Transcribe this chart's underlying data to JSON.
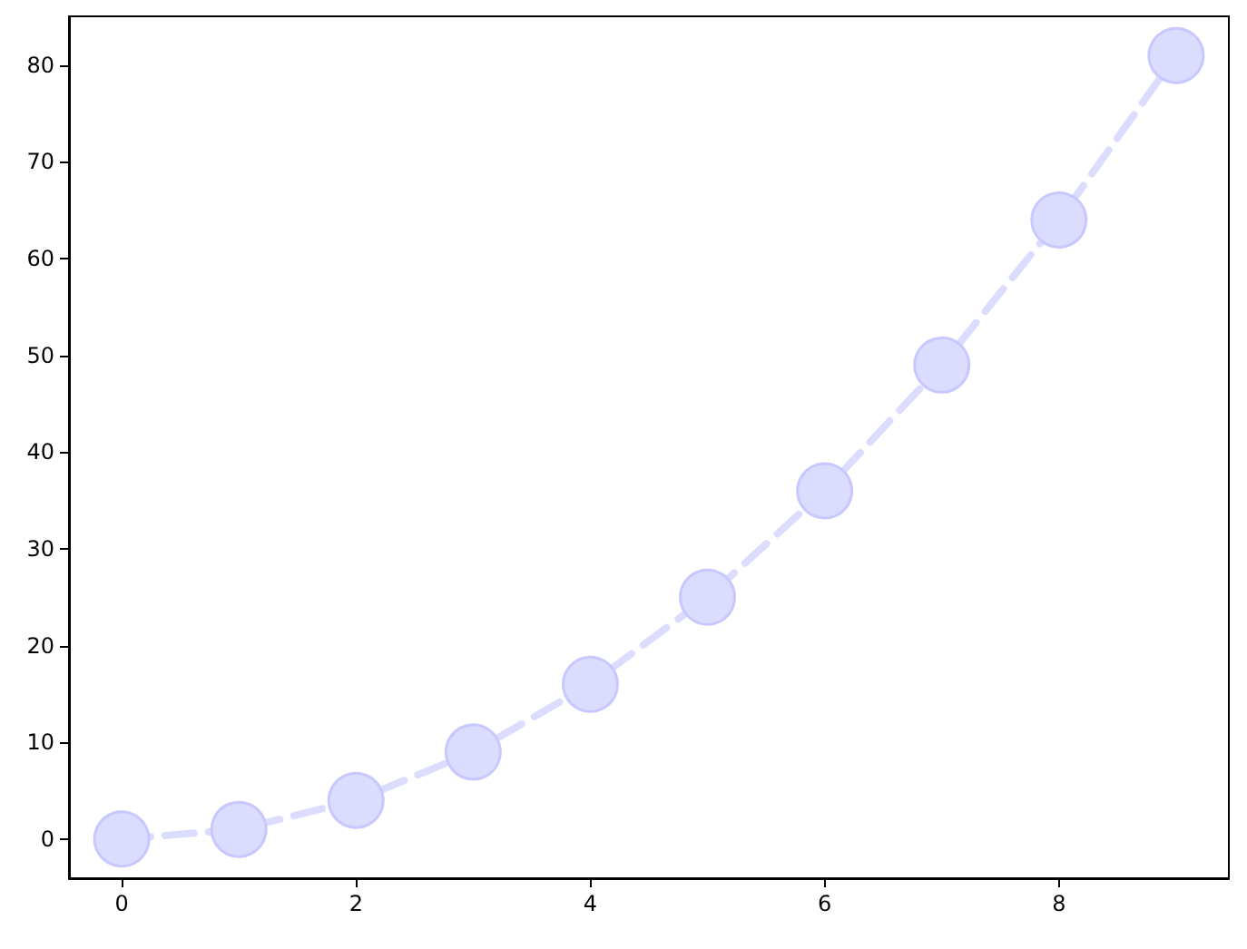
{
  "chart_data": {
    "type": "line",
    "x": [
      0,
      1,
      2,
      3,
      4,
      5,
      6,
      7,
      8,
      9
    ],
    "series": [
      {
        "color": "#dcdcff",
        "values": [
          0,
          1,
          4,
          9,
          16,
          25,
          36,
          49,
          64,
          81
        ]
      }
    ],
    "xlim": [
      -0.45,
      9.45
    ],
    "ylim": [
      -4.05,
      85.05
    ],
    "xticks": [
      0,
      2,
      4,
      6,
      8
    ],
    "yticks": [
      0,
      10,
      20,
      30,
      40,
      50,
      60,
      70,
      80
    ],
    "grid": false,
    "marker": "circle",
    "line_style": "dashed"
  }
}
